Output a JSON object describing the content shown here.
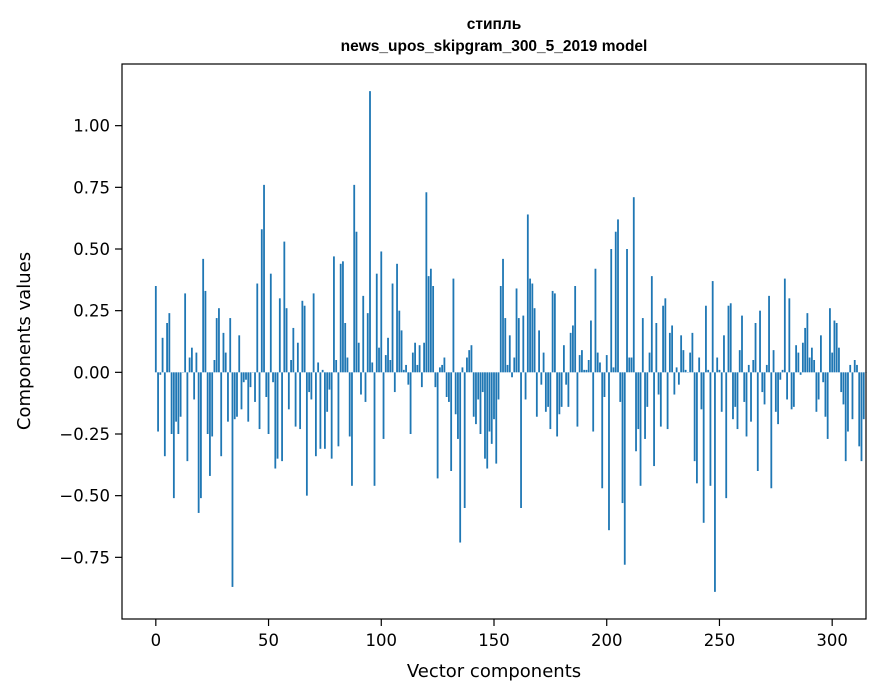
{
  "chart_data": {
    "type": "bar",
    "title_line1": "стипль",
    "title_line2": "news_upos_skipgram_300_5_2019 model",
    "xlabel": "Vector components",
    "ylabel": "Components values",
    "xlim": [
      -15,
      315
    ],
    "ylim": [
      -1.0,
      1.25
    ],
    "x_ticks": [
      0,
      50,
      100,
      150,
      200,
      250,
      300
    ],
    "y_ticks": [
      -0.75,
      -0.5,
      -0.25,
      0.0,
      0.25,
      0.5,
      0.75,
      1.0
    ],
    "x_tick_labels": [
      "0",
      "50",
      "100",
      "150",
      "200",
      "250",
      "300"
    ],
    "y_tick_labels": [
      "−0.75",
      "−0.50",
      "−0.25",
      "0.00",
      "0.25",
      "0.50",
      "0.75",
      "1.00"
    ],
    "bar_color": "#1f77b4",
    "values": [
      0.35,
      -0.24,
      -0.01,
      0.14,
      -0.34,
      0.2,
      0.24,
      -0.25,
      -0.51,
      -0.2,
      -0.25,
      -0.18,
      0.0,
      0.32,
      -0.36,
      0.06,
      0.1,
      -0.11,
      0.08,
      -0.57,
      -0.51,
      0.46,
      0.33,
      -0.25,
      -0.42,
      -0.26,
      0.05,
      0.22,
      0.26,
      -0.34,
      0.16,
      0.08,
      -0.2,
      0.22,
      -0.87,
      -0.19,
      -0.18,
      0.15,
      -0.15,
      -0.04,
      -0.03,
      -0.2,
      -0.06,
      0.0,
      -0.12,
      0.36,
      -0.23,
      0.58,
      0.76,
      -0.1,
      -0.25,
      0.4,
      -0.04,
      -0.39,
      -0.35,
      0.3,
      -0.36,
      0.53,
      0.26,
      -0.15,
      0.05,
      0.18,
      -0.22,
      0.12,
      -0.23,
      0.29,
      0.27,
      -0.5,
      -0.08,
      -0.11,
      0.32,
      -0.34,
      0.04,
      -0.31,
      0.01,
      -0.31,
      -0.16,
      -0.07,
      -0.35,
      0.47,
      0.05,
      -0.3,
      0.44,
      0.45,
      0.2,
      0.06,
      -0.26,
      -0.46,
      0.76,
      0.57,
      0.12,
      -0.09,
      0.31,
      -0.12,
      0.24,
      1.14,
      0.04,
      -0.46,
      0.4,
      0.1,
      0.49,
      -0.27,
      0.07,
      0.14,
      0.05,
      0.36,
      -0.08,
      0.44,
      0.25,
      0.17,
      0.01,
      0.03,
      -0.05,
      -0.25,
      0.08,
      0.12,
      0.03,
      0.11,
      -0.06,
      0.12,
      0.73,
      0.39,
      0.42,
      0.35,
      -0.06,
      -0.43,
      0.02,
      0.03,
      0.06,
      -0.1,
      -0.12,
      -0.4,
      0.38,
      -0.17,
      -0.27,
      -0.69,
      0.02,
      -0.55,
      0.06,
      0.09,
      0.11,
      -0.18,
      -0.21,
      -0.11,
      -0.25,
      -0.08,
      -0.35,
      -0.39,
      -0.24,
      -0.29,
      -0.19,
      -0.37,
      -0.11,
      0.35,
      0.46,
      0.22,
      0.03,
      0.15,
      -0.02,
      0.06,
      0.34,
      0.22,
      -0.55,
      0.23,
      -0.11,
      0.64,
      0.38,
      0.36,
      0.26,
      -0.18,
      0.17,
      -0.05,
      0.08,
      -0.16,
      -0.14,
      -0.23,
      0.33,
      0.32,
      -0.26,
      -0.17,
      -0.14,
      0.11,
      -0.05,
      -0.14,
      0.16,
      0.19,
      0.35,
      -0.22,
      0.07,
      0.09,
      0.01,
      0.01,
      0.05,
      0.21,
      -0.24,
      0.42,
      0.08,
      0.04,
      -0.47,
      -0.1,
      0.07,
      -0.64,
      0.5,
      0.02,
      0.57,
      0.62,
      -0.12,
      -0.53,
      -0.78,
      0.5,
      0.06,
      0.06,
      0.71,
      -0.32,
      -0.23,
      -0.46,
      0.22,
      -0.27,
      -0.14,
      0.08,
      0.39,
      -0.38,
      0.2,
      -0.09,
      -0.22,
      0.27,
      0.3,
      -0.23,
      0.16,
      0.19,
      -0.09,
      0.02,
      -0.05,
      0.15,
      0.09,
      0.01,
      0.0,
      0.08,
      0.16,
      -0.36,
      -0.45,
      0.06,
      -0.15,
      -0.61,
      0.27,
      0.01,
      -0.46,
      0.37,
      -0.89,
      0.06,
      0.01,
      -0.16,
      0.15,
      -0.51,
      0.27,
      0.28,
      -0.19,
      -0.14,
      -0.23,
      0.09,
      0.23,
      -0.12,
      -0.26,
      0.03,
      -0.2,
      0.05,
      0.2,
      -0.4,
      0.25,
      -0.08,
      -0.13,
      0.03,
      0.31,
      -0.47,
      0.09,
      -0.16,
      -0.21,
      -0.03,
      0.01,
      0.38,
      -0.11,
      0.3,
      -0.15,
      -0.14,
      0.11,
      0.08,
      -0.01,
      0.12,
      0.18,
      0.24,
      0.06,
      0.1,
      0.05,
      -0.16,
      -0.11,
      0.15,
      -0.04,
      -0.18,
      -0.27,
      0.26,
      0.08,
      0.21,
      0.2,
      0.1,
      -0.08,
      -0.13,
      -0.36,
      -0.24,
      0.03,
      -0.19,
      0.05,
      0.03,
      -0.3,
      -0.36,
      -0.19,
      0.0
    ]
  }
}
